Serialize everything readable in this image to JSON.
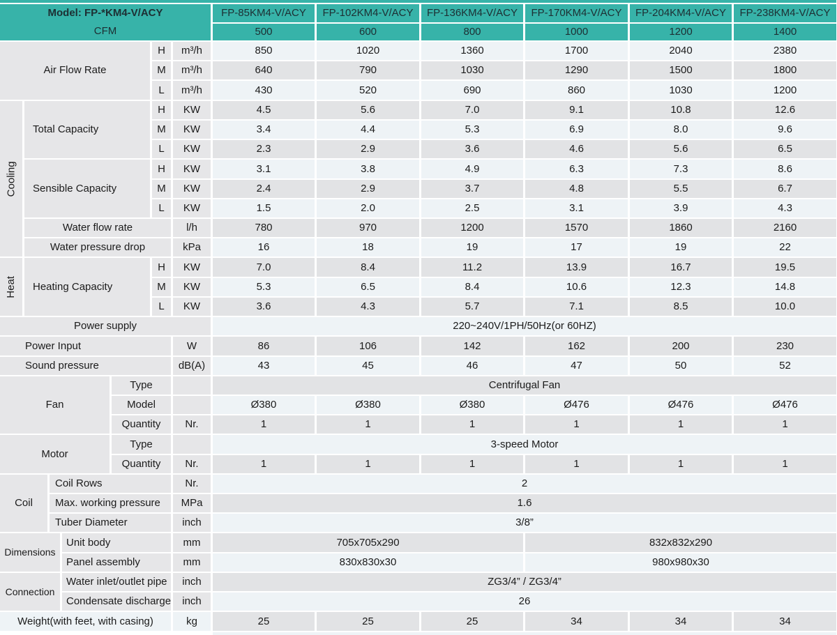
{
  "colors": {
    "teal": "#37b3a9",
    "row_light": "#eef3f6",
    "row_gray": "#e2e3e5",
    "label_bg": "#e6e6e8",
    "text": "#1b1b1b"
  },
  "header": {
    "model_label": "Model: FP-*KM4-V/ACY",
    "cfm_label": "CFM",
    "models": [
      "FP-85KM4-V/ACY",
      "FP-102KM4-V/ACY",
      "FP-136KM4-V/ACY",
      "FP-170KM4-V/ACY",
      "FP-204KM4-V/ACY",
      "FP-238KM4-V/ACY"
    ],
    "cfm_values": [
      "500",
      "600",
      "800",
      "1000",
      "1200",
      "1400"
    ]
  },
  "body_rows": [
    {
      "left": [
        {
          "t": "Air Flow Rate",
          "c": 1,
          "cs": 5,
          "rs": 3
        }
      ],
      "speed": "H",
      "unit": "m³/h",
      "data": {
        "values": [
          "850",
          "1020",
          "1360",
          "1700",
          "2040",
          "2380"
        ]
      }
    },
    {
      "speed": "M",
      "unit": "m³/h",
      "data": {
        "values": [
          "640",
          "790",
          "1030",
          "1290",
          "1500",
          "1800"
        ]
      }
    },
    {
      "speed": "L",
      "unit": "m³/h",
      "data": {
        "values": [
          "430",
          "520",
          "690",
          "860",
          "1030",
          "1200"
        ]
      }
    },
    {
      "left": [
        {
          "t": "Cooling",
          "c": 1,
          "cs": 1,
          "rs": 8,
          "v": 1
        },
        {
          "t": "Total Capacity",
          "c": 2,
          "cs": 4,
          "rs": 3,
          "al": 12
        }
      ],
      "speed": "H",
      "unit": "KW",
      "data": {
        "values": [
          "4.5",
          "5.6",
          "7.0",
          "9.1",
          "10.8",
          "12.6"
        ]
      }
    },
    {
      "speed": "M",
      "unit": "KW",
      "data": {
        "values": [
          "3.4",
          "4.4",
          "5.3",
          "6.9",
          "8.0",
          "9.6"
        ]
      }
    },
    {
      "speed": "L",
      "unit": "KW",
      "data": {
        "values": [
          "2.3",
          "2.9",
          "3.6",
          "4.6",
          "5.6",
          "6.5"
        ]
      }
    },
    {
      "left": [
        {
          "t": "Sensible Capacity",
          "c": 2,
          "cs": 4,
          "rs": 3,
          "al": 12
        }
      ],
      "speed": "H",
      "unit": "KW",
      "data": {
        "values": [
          "3.1",
          "3.8",
          "4.9",
          "6.3",
          "7.3",
          "8.6"
        ]
      }
    },
    {
      "speed": "M",
      "unit": "KW",
      "data": {
        "values": [
          "2.4",
          "2.9",
          "3.7",
          "4.8",
          "5.5",
          "6.7"
        ]
      }
    },
    {
      "speed": "L",
      "unit": "KW",
      "data": {
        "values": [
          "1.5",
          "2.0",
          "2.5",
          "3.1",
          "3.9",
          "4.3"
        ]
      }
    },
    {
      "left": [
        {
          "t": "Water flow rate",
          "c": 2,
          "cs": 5
        }
      ],
      "unit": "l/h",
      "data": {
        "values": [
          "780",
          "970",
          "1200",
          "1570",
          "1860",
          "2160"
        ]
      }
    },
    {
      "left": [
        {
          "t": "Water pressure drop",
          "c": 2,
          "cs": 5
        }
      ],
      "unit": "kPa",
      "data": {
        "values": [
          "16",
          "18",
          "19",
          "17",
          "19",
          "22"
        ]
      }
    },
    {
      "left": [
        {
          "t": "Heat",
          "c": 1,
          "cs": 1,
          "rs": 3,
          "v": 1
        },
        {
          "t": "Heating Capacity",
          "c": 2,
          "cs": 4,
          "rs": 3,
          "al": 12
        }
      ],
      "speed": "H",
      "unit": "KW",
      "data": {
        "values": [
          "7.0",
          "8.4",
          "11.2",
          "13.9",
          "16.7",
          "19.5"
        ]
      }
    },
    {
      "speed": "M",
      "unit": "KW",
      "data": {
        "values": [
          "5.3",
          "6.5",
          "8.4",
          "10.6",
          "12.3",
          "14.8"
        ]
      }
    },
    {
      "speed": "L",
      "unit": "KW",
      "data": {
        "values": [
          "3.6",
          "4.3",
          "5.7",
          "7.1",
          "8.5",
          "10.0"
        ]
      }
    },
    {
      "left": [
        {
          "t": "Power supply",
          "c": 1,
          "cs": 7
        }
      ],
      "data": {
        "value": "220~240V/1PH/50Hz(or 60HZ)"
      }
    },
    {
      "left": [
        {
          "t": "Power Input",
          "c": 1,
          "cs": 6,
          "al": 36
        }
      ],
      "unit": "W",
      "data": {
        "values": [
          "86",
          "106",
          "142",
          "162",
          "200",
          "230"
        ]
      }
    },
    {
      "left": [
        {
          "t": "Sound pressure",
          "c": 1,
          "cs": 6,
          "al": 36
        }
      ],
      "unit": "dB(A)",
      "data": {
        "values": [
          "43",
          "45",
          "46",
          "47",
          "50",
          "52"
        ]
      }
    },
    {
      "left": [
        {
          "t": "Fan",
          "c": 1,
          "cs": 4,
          "rs": 3
        },
        {
          "t": "Type",
          "c": 5,
          "cs": 2
        }
      ],
      "unit": "",
      "data": {
        "value": "Centrifugal Fan"
      }
    },
    {
      "left": [
        {
          "t": "Model",
          "c": 5,
          "cs": 2
        }
      ],
      "unit": "",
      "data": {
        "values": [
          "Ø380",
          "Ø380",
          "Ø380",
          "Ø476",
          "Ø476",
          "Ø476"
        ]
      }
    },
    {
      "left": [
        {
          "t": "Quantity",
          "c": 5,
          "cs": 2
        }
      ],
      "unit": "Nr.",
      "data": {
        "values": [
          "1",
          "1",
          "1",
          "1",
          "1",
          "1"
        ]
      }
    },
    {
      "left": [
        {
          "t": "Motor",
          "c": 1,
          "cs": 4,
          "rs": 2
        },
        {
          "t": "Type",
          "c": 5,
          "cs": 2
        }
      ],
      "unit": "",
      "data": {
        "value": "3-speed Motor"
      }
    },
    {
      "left": [
        {
          "t": "Quantity",
          "c": 5,
          "cs": 2
        }
      ],
      "unit": "Nr.",
      "data": {
        "values": [
          "1",
          "1",
          "1",
          "1",
          "1",
          "1"
        ]
      }
    },
    {
      "left": [
        {
          "t": "Coil",
          "c": 1,
          "cs": 2,
          "rs": 3
        },
        {
          "t": "Coil Rows",
          "c": 3,
          "cs": 4,
          "al": 8
        }
      ],
      "unit": "Nr.",
      "data": {
        "value": "2"
      }
    },
    {
      "left": [
        {
          "t": "Max. working pressure",
          "c": 3,
          "cs": 4,
          "al": 8
        }
      ],
      "unit": "MPa",
      "data": {
        "value": "1.6"
      }
    },
    {
      "left": [
        {
          "t": "Tuber Diameter",
          "c": 3,
          "cs": 4,
          "al": 8
        }
      ],
      "unit": "inch",
      "data": {
        "value": "3/8”"
      }
    },
    {
      "left": [
        {
          "t": "Dimensions",
          "c": 1,
          "cs": 3,
          "rs": 2,
          "small": 1
        },
        {
          "t": "Unit body",
          "c": 4,
          "cs": 3,
          "al": 6
        }
      ],
      "unit": "mm",
      "data": {
        "halves": [
          "705x705x290",
          "832x832x290"
        ]
      }
    },
    {
      "left": [
        {
          "t": "Panel assembly",
          "c": 4,
          "cs": 3,
          "al": 6
        }
      ],
      "unit": "mm",
      "data": {
        "halves": [
          "830x830x30",
          "980x980x30"
        ]
      }
    },
    {
      "left": [
        {
          "t": "Connection",
          "c": 1,
          "cs": 3,
          "rs": 2,
          "small": 1
        },
        {
          "t": "Water inlet/outlet pipe",
          "c": 4,
          "cs": 3,
          "al": 6
        }
      ],
      "unit": "inch",
      "data": {
        "value": "ZG3/4” / ZG3/4”"
      }
    },
    {
      "left": [
        {
          "t": "Condensate discharge",
          "c": 4,
          "cs": 3,
          "al": 6
        }
      ],
      "unit": "inch",
      "data": {
        "value": "26"
      }
    },
    {
      "left": [
        {
          "t": "Weight(with feet, with casing)",
          "c": 1,
          "cs": 6,
          "bg": "light"
        }
      ],
      "unit": "kg",
      "ubg": "light",
      "data": {
        "values": [
          "25",
          "25",
          "25",
          "34",
          "34",
          "34"
        ]
      }
    }
  ]
}
